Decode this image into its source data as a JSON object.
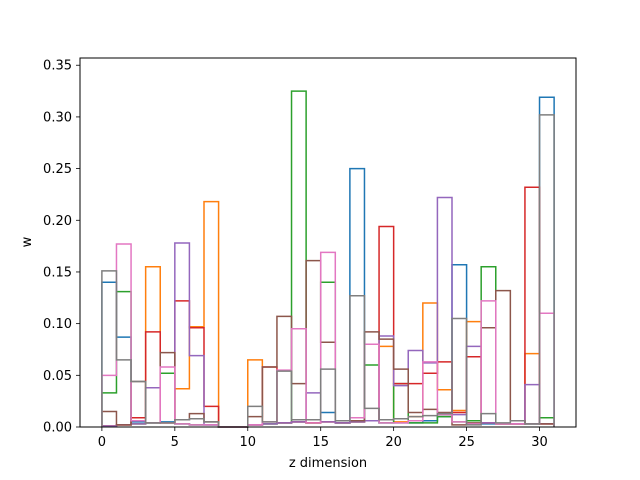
{
  "chart_data": {
    "type": "step-histogram",
    "title": "",
    "xlabel": "z dimension",
    "ylabel": "w",
    "xlim": [
      -1.5,
      32.5
    ],
    "ylim": [
      0,
      0.357
    ],
    "xticks": [
      0,
      5,
      10,
      15,
      20,
      25,
      30
    ],
    "yticks": [
      0.0,
      0.05,
      0.1,
      0.15,
      0.2,
      0.25,
      0.3,
      0.35
    ],
    "ytick_labels": [
      "0.00",
      "0.05",
      "0.10",
      "0.15",
      "0.20",
      "0.25",
      "0.30",
      "0.35"
    ],
    "bin_edges": [
      0,
      1,
      2,
      3,
      4,
      5,
      6,
      7,
      8,
      9,
      10,
      11,
      12,
      13,
      14,
      15,
      16,
      17,
      18,
      19,
      20,
      21,
      22,
      23,
      24,
      25,
      26,
      27,
      28,
      29,
      30,
      31
    ],
    "grid": false,
    "legend": "none",
    "series": [
      {
        "color": "#1f77b4",
        "values": [
          0.14,
          0.087,
          0.005,
          0.004,
          0.005,
          0.003,
          0.002,
          0.002,
          0,
          0,
          0.002,
          0.003,
          0.004,
          0.005,
          0.004,
          0.014,
          0.004,
          0.25,
          0.006,
          0.004,
          0.004,
          0.004,
          0.006,
          0.01,
          0.157,
          0.003,
          0.003,
          0.003,
          0.003,
          0.003,
          0.319
        ]
      },
      {
        "color": "#ff7f0e",
        "values": [
          0.001,
          0.002,
          0.003,
          0.155,
          0.004,
          0.037,
          0.097,
          0.218,
          0,
          0,
          0.065,
          0.003,
          0.004,
          0.005,
          0.004,
          0.005,
          0.004,
          0.005,
          0.006,
          0.078,
          0.005,
          0.01,
          0.12,
          0.036,
          0.016,
          0.102,
          0.004,
          0.003,
          0.003,
          0.071,
          0.003
        ]
      },
      {
        "color": "#2ca02c",
        "values": [
          0.033,
          0.131,
          0.003,
          0.004,
          0.052,
          0.003,
          0.002,
          0.002,
          0,
          0,
          0.002,
          0.003,
          0.004,
          0.325,
          0.004,
          0.14,
          0.004,
          0.005,
          0.06,
          0.004,
          0.042,
          0.004,
          0.004,
          0.01,
          0.005,
          0.006,
          0.155,
          0.003,
          0.003,
          0.003,
          0.009
        ]
      },
      {
        "color": "#d62728",
        "values": [
          0.001,
          0.002,
          0.009,
          0.092,
          0.004,
          0.122,
          0.096,
          0.02,
          0,
          0,
          0.002,
          0.058,
          0.004,
          0.005,
          0.004,
          0.005,
          0.004,
          0.005,
          0.006,
          0.194,
          0.042,
          0.042,
          0.052,
          0.063,
          0.014,
          0.068,
          0.004,
          0.003,
          0.003,
          0.232,
          0.003
        ]
      },
      {
        "color": "#9467bd",
        "values": [
          0.001,
          0.002,
          0.003,
          0.038,
          0.004,
          0.178,
          0.069,
          0.002,
          0,
          0,
          0.002,
          0.003,
          0.004,
          0.005,
          0.033,
          0.005,
          0.004,
          0.005,
          0.006,
          0.088,
          0.04,
          0.074,
          0.062,
          0.222,
          0.012,
          0.078,
          0.004,
          0.003,
          0.003,
          0.041,
          0.003
        ]
      },
      {
        "color": "#8c564b",
        "values": [
          0.015,
          0.002,
          0.044,
          0.004,
          0.072,
          0.007,
          0.013,
          0.005,
          0,
          0,
          0.01,
          0.058,
          0.107,
          0.042,
          0.161,
          0.082,
          0.006,
          0.006,
          0.092,
          0.085,
          0.056,
          0.014,
          0.017,
          0.014,
          0.002,
          0.004,
          0.096,
          0.132,
          0.006,
          0.003,
          0.003
        ]
      },
      {
        "color": "#e377c2",
        "values": [
          0.05,
          0.177,
          0.006,
          0.004,
          0.058,
          0.003,
          0.002,
          0.002,
          0,
          0,
          0.002,
          0.005,
          0.055,
          0.095,
          0.004,
          0.169,
          0.006,
          0.009,
          0.08,
          0.004,
          0.004,
          0.006,
          0.063,
          0.012,
          0.005,
          0.003,
          0.122,
          0.003,
          0.003,
          0.003,
          0.11
        ]
      },
      {
        "color": "#7f7f7f",
        "values": [
          0.151,
          0.065,
          0.044,
          0.004,
          0.004,
          0.007,
          0.008,
          0.005,
          0,
          0,
          0.02,
          0.005,
          0.054,
          0.007,
          0.007,
          0.056,
          0.006,
          0.127,
          0.018,
          0.007,
          0.008,
          0.01,
          0.011,
          0.013,
          0.105,
          0.002,
          0.013,
          0.004,
          0.006,
          0.003,
          0.302
        ]
      }
    ]
  }
}
